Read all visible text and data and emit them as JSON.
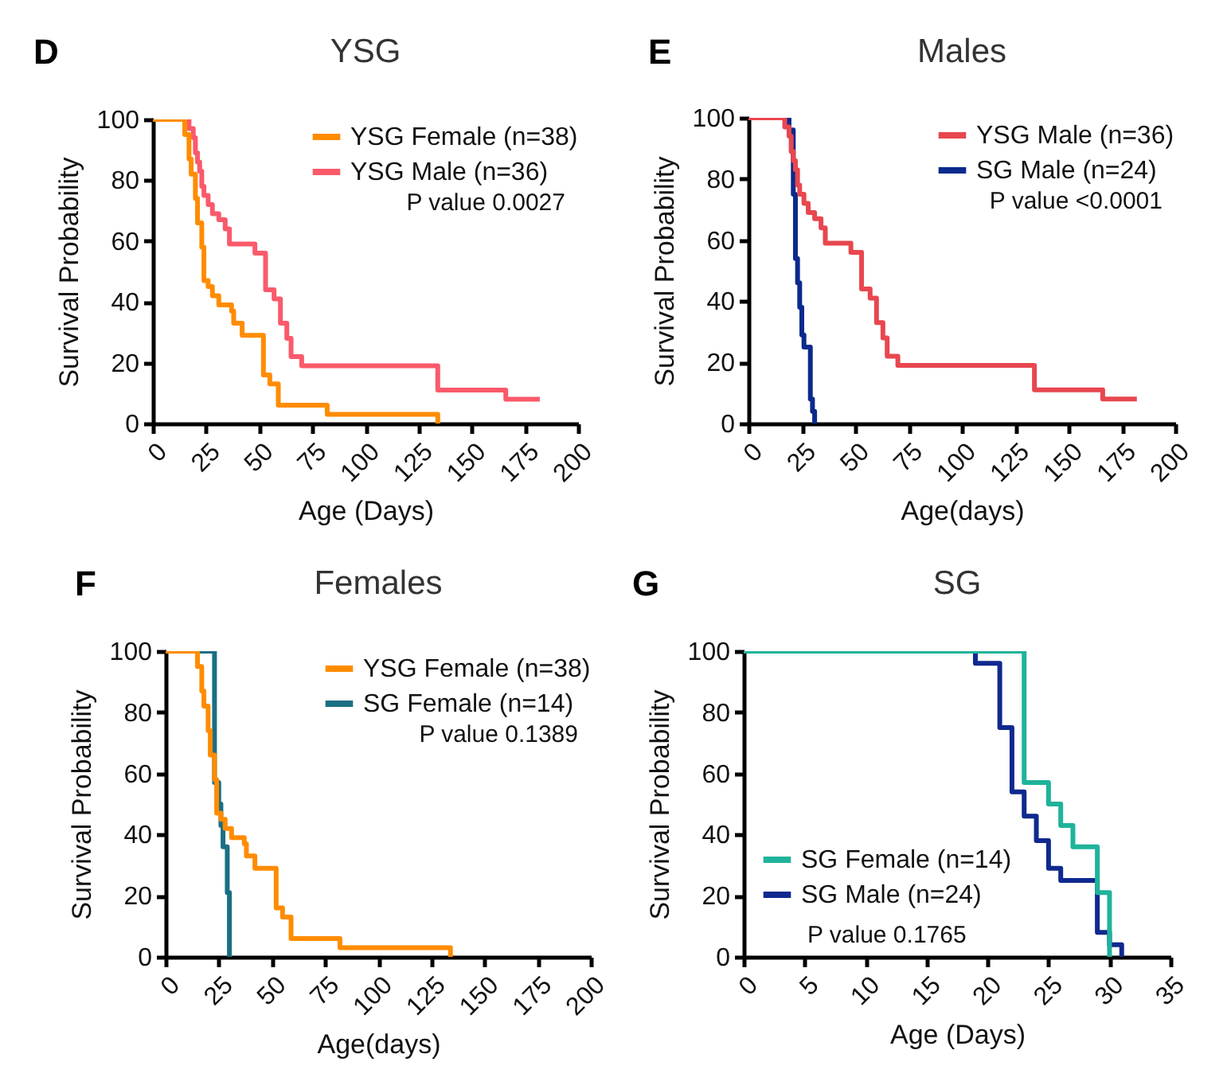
{
  "chart_data": [
    {
      "type": "step",
      "title": "YSG",
      "xlabel": "Age (Days)",
      "ylabel": "Survival Probability",
      "annotations": [
        "D",
        "P value 0.0027"
      ],
      "series": [
        {
          "name": "YSG Female (n=38)",
          "color": "#ff8c00",
          "x": [
            0,
            15,
            17,
            18,
            20,
            21,
            23,
            24,
            26,
            28,
            31,
            37,
            38,
            42,
            52,
            55,
            59,
            82,
            134
          ],
          "values": [
            100,
            95,
            87,
            82,
            74,
            66,
            58,
            47,
            45,
            42,
            39,
            37,
            33,
            29,
            16,
            13,
            6,
            3,
            0
          ]
        },
        {
          "name": "YSG Male (n=36)",
          "color": "#fa5a6b",
          "x": [
            0,
            17,
            19,
            20,
            21,
            22,
            23,
            24,
            26,
            28,
            31,
            34,
            36,
            48,
            53,
            57,
            60,
            63,
            65,
            70,
            134,
            166,
            182
          ],
          "values": [
            100,
            97,
            94,
            89,
            86,
            83,
            78,
            75,
            72,
            69,
            67,
            64,
            59,
            56,
            44,
            41,
            33,
            28,
            22,
            19,
            11,
            8,
            8
          ]
        }
      ],
      "xlim": [
        0,
        200
      ],
      "xticks": [
        0,
        25,
        50,
        75,
        100,
        125,
        150,
        175,
        200
      ],
      "ylim": [
        0,
        100
      ],
      "yticks": [
        0,
        20,
        40,
        60,
        80,
        100
      ],
      "legend": "top right",
      "line_style": "solid"
    },
    {
      "type": "step",
      "title": "Males",
      "xlabel": "Age(days)",
      "ylabel": "Survival Probability",
      "annotations": [
        "E",
        "P value <0.0001"
      ],
      "series": [
        {
          "name": "YSG Male (n=36)",
          "color": "#e8474f",
          "x": [
            0,
            17,
            19,
            20,
            21,
            22,
            23,
            24,
            26,
            28,
            31,
            34,
            36,
            48,
            53,
            57,
            60,
            63,
            65,
            70,
            134,
            166,
            182
          ],
          "values": [
            100,
            97,
            94,
            89,
            86,
            83,
            78,
            75,
            72,
            69,
            67,
            64,
            59,
            56,
            44,
            41,
            33,
            28,
            22,
            19,
            11,
            8,
            8
          ]
        },
        {
          "name": "SG Male (n=24)",
          "color": "#0b2a8c",
          "x": [
            0,
            19,
            21,
            22,
            23,
            24,
            25,
            26,
            29,
            30,
            31
          ],
          "values": [
            100,
            96,
            75,
            54,
            46,
            38,
            29,
            25,
            8,
            4,
            0
          ]
        }
      ],
      "xlim": [
        0,
        200
      ],
      "xticks": [
        0,
        25,
        50,
        75,
        100,
        125,
        150,
        175,
        200
      ],
      "ylim": [
        0,
        100
      ],
      "yticks": [
        0,
        20,
        40,
        60,
        80,
        100
      ],
      "legend": "top right",
      "line_style": "solid"
    },
    {
      "type": "step",
      "title": "Females",
      "xlabel": "Age(days)",
      "ylabel": "Survival Probability",
      "annotations": [
        "F",
        "P value 0.1389"
      ],
      "series": [
        {
          "name": "YSG Female (n=38)",
          "color": "#ff8c00",
          "x": [
            0,
            15,
            17,
            18,
            20,
            21,
            23,
            24,
            26,
            28,
            31,
            37,
            38,
            42,
            52,
            55,
            59,
            82,
            134
          ],
          "values": [
            100,
            95,
            87,
            82,
            74,
            66,
            58,
            47,
            45,
            42,
            39,
            37,
            33,
            29,
            16,
            13,
            6,
            3,
            0
          ]
        },
        {
          "name": "SG Female (n=14)",
          "color": "#1a6f83",
          "x": [
            0,
            23,
            25,
            26,
            27,
            29,
            30
          ],
          "values": [
            100,
            57,
            50,
            43,
            36,
            21,
            0
          ]
        }
      ],
      "xlim": [
        0,
        200
      ],
      "xticks": [
        0,
        25,
        50,
        75,
        100,
        125,
        150,
        175,
        200
      ],
      "ylim": [
        0,
        100
      ],
      "yticks": [
        0,
        20,
        40,
        60,
        80,
        100
      ],
      "legend": "top right",
      "line_style": "solid"
    },
    {
      "type": "step",
      "title": "SG",
      "xlabel": "Age (Days)",
      "ylabel": "Survival Probability",
      "annotations": [
        "G",
        "P value 0.1765"
      ],
      "series": [
        {
          "name": "SG Female (n=14)",
          "color": "#1fb39b",
          "x": [
            0,
            23,
            25,
            26,
            27,
            29,
            30
          ],
          "values": [
            100,
            57,
            50,
            43,
            36,
            21,
            0
          ]
        },
        {
          "name": "SG Male (n=24)",
          "color": "#10298f",
          "x": [
            0,
            19,
            21,
            22,
            23,
            24,
            25,
            26,
            29,
            30,
            31
          ],
          "values": [
            100,
            96,
            75,
            54,
            46,
            38,
            29,
            25,
            8,
            4,
            0
          ]
        }
      ],
      "xlim": [
        0,
        35
      ],
      "xticks": [
        0,
        5,
        10,
        15,
        20,
        25,
        30,
        35
      ],
      "ylim": [
        0,
        100
      ],
      "yticks": [
        0,
        20,
        40,
        60,
        80,
        100
      ],
      "legend": "bottom left",
      "line_style": "solid"
    }
  ]
}
